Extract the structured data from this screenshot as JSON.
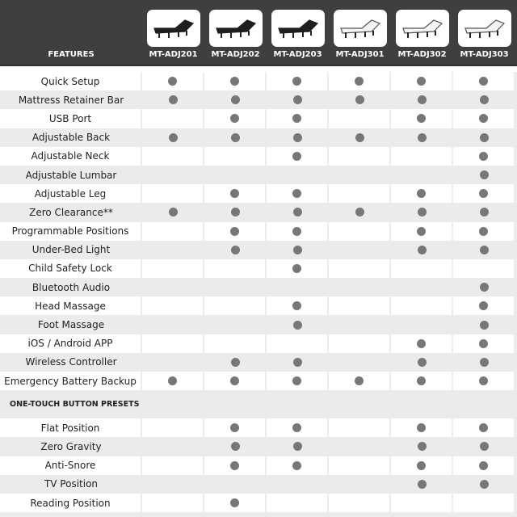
{
  "header": {
    "features_label": "FEATURES",
    "models": [
      {
        "name": "MT-ADJ201",
        "bed_color": "black"
      },
      {
        "name": "MT-ADJ202",
        "bed_color": "black"
      },
      {
        "name": "MT-ADJ203",
        "bed_color": "black"
      },
      {
        "name": "MT-ADJ301",
        "bed_color": "white"
      },
      {
        "name": "MT-ADJ302",
        "bed_color": "white"
      },
      {
        "name": "MT-ADJ303",
        "bed_color": "white"
      }
    ]
  },
  "colors": {
    "header_bg": "#3f3f3f",
    "dot": "#777777",
    "row_alt": "#ebebeb"
  },
  "features": [
    {
      "label": "Quick Setup",
      "has": [
        1,
        1,
        1,
        1,
        1,
        1
      ]
    },
    {
      "label": "Mattress Retainer Bar",
      "has": [
        1,
        1,
        1,
        1,
        1,
        1
      ]
    },
    {
      "label": "USB Port",
      "has": [
        0,
        1,
        1,
        0,
        1,
        1
      ]
    },
    {
      "label": "Adjustable Back",
      "has": [
        1,
        1,
        1,
        1,
        1,
        1
      ]
    },
    {
      "label": "Adjustable Neck",
      "has": [
        0,
        0,
        1,
        0,
        0,
        1
      ]
    },
    {
      "label": "Adjustable Lumbar",
      "has": [
        0,
        0,
        0,
        0,
        0,
        1
      ]
    },
    {
      "label": "Adjustable Leg",
      "has": [
        0,
        1,
        1,
        0,
        1,
        1
      ]
    },
    {
      "label": "Zero Clearance**",
      "has": [
        1,
        1,
        1,
        1,
        1,
        1
      ]
    },
    {
      "label": "Programmable Positions",
      "has": [
        0,
        1,
        1,
        0,
        1,
        1
      ]
    },
    {
      "label": "Under-Bed Light",
      "has": [
        0,
        1,
        1,
        0,
        1,
        1
      ]
    },
    {
      "label": "Child Safety Lock",
      "has": [
        0,
        0,
        1,
        0,
        0,
        0
      ]
    },
    {
      "label": "Bluetooth Audio",
      "has": [
        0,
        0,
        0,
        0,
        0,
        1
      ]
    },
    {
      "label": "Head Massage",
      "has": [
        0,
        0,
        1,
        0,
        0,
        1
      ]
    },
    {
      "label": "Foot Massage",
      "has": [
        0,
        0,
        1,
        0,
        0,
        1
      ]
    },
    {
      "label": "iOS / Android APP",
      "has": [
        0,
        0,
        0,
        0,
        1,
        1
      ]
    },
    {
      "label": "Wireless Controller",
      "has": [
        0,
        1,
        1,
        0,
        1,
        1
      ]
    },
    {
      "label": "Emergency Battery Backup",
      "has": [
        1,
        1,
        1,
        1,
        1,
        1
      ]
    }
  ],
  "presets_section": {
    "title": "ONE-TOUCH BUTTON PRESETS",
    "rows": [
      {
        "label": "Flat Position",
        "has": [
          0,
          1,
          1,
          0,
          1,
          1
        ]
      },
      {
        "label": "Zero Gravity",
        "has": [
          0,
          1,
          1,
          0,
          1,
          1
        ]
      },
      {
        "label": "Anti-Snore",
        "has": [
          0,
          1,
          1,
          0,
          1,
          1
        ]
      },
      {
        "label": "TV Position",
        "has": [
          0,
          0,
          0,
          0,
          1,
          1
        ]
      },
      {
        "label": "Reading Position",
        "has": [
          0,
          1,
          0,
          0,
          0,
          0
        ]
      }
    ]
  }
}
